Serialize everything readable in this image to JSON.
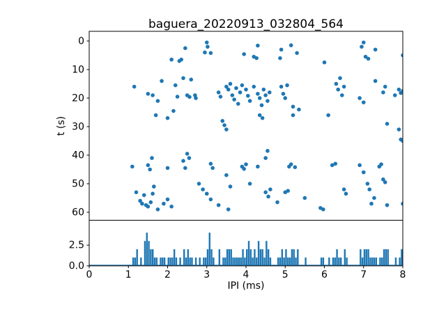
{
  "figure": {
    "title": "baguera_20220913_032804_564",
    "xlabel": "IPI (ms)",
    "ylabel_top": "t (s)",
    "accent_color": "#1f77b4",
    "background": "#ffffff"
  },
  "chart_data": [
    {
      "type": "scatter",
      "title": "baguera_20220913_032804_564",
      "xlabel": "",
      "ylabel": "t (s)",
      "xlim": [
        0,
        8
      ],
      "ylim": [
        62.8,
        -3.4
      ],
      "y_inverted": true,
      "yticks": [
        0,
        10,
        20,
        30,
        40,
        50,
        60
      ],
      "ytick_labels": [
        "0",
        "10",
        "20",
        "30",
        "40",
        "50",
        "60"
      ],
      "marker_color": "#1f77b4",
      "points": [
        [
          2.45,
          2.5
        ],
        [
          2.1,
          6.5
        ],
        [
          2.3,
          7
        ],
        [
          2.35,
          6.5
        ],
        [
          3.0,
          0.5
        ],
        [
          3.02,
          2
        ],
        [
          3.1,
          4.2
        ],
        [
          2.95,
          4
        ],
        [
          4.2,
          5.5
        ],
        [
          4.27,
          6
        ],
        [
          3.95,
          4.6
        ],
        [
          4.3,
          1.6
        ],
        [
          4.9,
          3
        ],
        [
          4.87,
          6
        ],
        [
          5.3,
          4.2
        ],
        [
          5.15,
          1.5
        ],
        [
          6.95,
          2
        ],
        [
          7.0,
          0.5
        ],
        [
          7.05,
          5.5
        ],
        [
          7.12,
          6.2
        ],
        [
          7.3,
          3
        ],
        [
          8.0,
          5
        ],
        [
          6.0,
          7.5
        ],
        [
          1.85,
          14
        ],
        [
          2.4,
          13
        ],
        [
          2.6,
          13.5
        ],
        [
          6.4,
          13
        ],
        [
          7.3,
          14
        ],
        [
          3.6,
          15
        ],
        [
          3.9,
          15.5
        ],
        [
          6.3,
          15
        ],
        [
          2.2,
          15.5
        ],
        [
          1.15,
          16
        ],
        [
          1.5,
          18.5
        ],
        [
          1.62,
          19
        ],
        [
          1.75,
          21
        ],
        [
          2.25,
          19.5
        ],
        [
          2.5,
          19
        ],
        [
          2.56,
          19.6
        ],
        [
          2.7,
          19
        ],
        [
          2.72,
          20
        ],
        [
          3.3,
          18
        ],
        [
          3.35,
          19.5
        ],
        [
          3.5,
          16
        ],
        [
          3.55,
          17
        ],
        [
          3.65,
          19
        ],
        [
          3.7,
          20.5
        ],
        [
          3.75,
          16.5
        ],
        [
          3.8,
          22
        ],
        [
          3.85,
          18
        ],
        [
          4.0,
          17
        ],
        [
          4.05,
          19.2
        ],
        [
          4.1,
          21
        ],
        [
          4.2,
          16
        ],
        [
          4.3,
          18.5
        ],
        [
          4.35,
          20
        ],
        [
          4.4,
          22.5
        ],
        [
          4.45,
          17
        ],
        [
          4.5,
          19
        ],
        [
          4.55,
          21
        ],
        [
          4.6,
          18
        ],
        [
          4.9,
          16
        ],
        [
          4.95,
          18.5
        ],
        [
          5.0,
          20
        ],
        [
          5.2,
          23
        ],
        [
          5.35,
          24
        ],
        [
          6.35,
          17
        ],
        [
          6.5,
          16
        ],
        [
          6.9,
          20
        ],
        [
          7.5,
          18
        ],
        [
          7.55,
          16
        ],
        [
          7.8,
          19
        ],
        [
          7.9,
          17
        ],
        [
          7.95,
          18.2
        ],
        [
          8.0,
          17.5
        ],
        [
          6.45,
          19
        ],
        [
          7.0,
          21.5
        ],
        [
          5.05,
          15.5
        ],
        [
          1.7,
          26
        ],
        [
          2.15,
          24.5
        ],
        [
          3.4,
          28
        ],
        [
          3.45,
          29.5
        ],
        [
          4.35,
          26
        ],
        [
          4.42,
          27
        ],
        [
          5.2,
          26
        ],
        [
          6.1,
          26
        ],
        [
          7.6,
          29
        ],
        [
          7.9,
          31
        ],
        [
          7.95,
          34.5
        ],
        [
          8.0,
          35
        ],
        [
          3.5,
          31
        ],
        [
          2.0,
          27
        ],
        [
          1.1,
          44
        ],
        [
          1.5,
          43.5
        ],
        [
          1.55,
          45
        ],
        [
          1.6,
          41
        ],
        [
          2.0,
          44.5
        ],
        [
          2.4,
          42
        ],
        [
          2.45,
          44.5
        ],
        [
          2.5,
          39.5
        ],
        [
          3.1,
          43
        ],
        [
          3.15,
          44.5
        ],
        [
          3.5,
          47
        ],
        [
          3.9,
          44
        ],
        [
          3.95,
          44.8
        ],
        [
          4.0,
          43.2
        ],
        [
          4.3,
          44
        ],
        [
          4.5,
          41
        ],
        [
          5.1,
          44
        ],
        [
          5.15,
          43.2
        ],
        [
          5.25,
          44.2
        ],
        [
          6.2,
          43.5
        ],
        [
          6.28,
          43
        ],
        [
          6.9,
          43.5
        ],
        [
          7.0,
          46
        ],
        [
          7.4,
          44
        ],
        [
          7.45,
          43.2
        ],
        [
          4.55,
          38.5
        ],
        [
          2.55,
          41
        ],
        [
          1.2,
          53
        ],
        [
          1.3,
          56
        ],
        [
          1.35,
          57
        ],
        [
          1.4,
          54
        ],
        [
          1.45,
          57.5
        ],
        [
          1.5,
          58
        ],
        [
          1.57,
          56.5
        ],
        [
          1.62,
          53.5
        ],
        [
          1.65,
          51
        ],
        [
          1.9,
          57
        ],
        [
          2.0,
          55.5
        ],
        [
          2.8,
          50
        ],
        [
          2.9,
          52
        ],
        [
          3.0,
          53.5
        ],
        [
          3.1,
          55.5
        ],
        [
          3.3,
          57.5
        ],
        [
          3.55,
          59
        ],
        [
          3.6,
          51
        ],
        [
          4.1,
          50
        ],
        [
          4.5,
          53
        ],
        [
          4.57,
          54.5
        ],
        [
          4.62,
          52
        ],
        [
          4.8,
          56.5
        ],
        [
          5.0,
          53
        ],
        [
          5.07,
          52.5
        ],
        [
          5.5,
          55
        ],
        [
          5.9,
          58.5
        ],
        [
          5.97,
          59
        ],
        [
          6.5,
          52
        ],
        [
          6.55,
          53.5
        ],
        [
          7.1,
          50
        ],
        [
          7.15,
          52
        ],
        [
          7.2,
          57
        ],
        [
          7.27,
          55
        ],
        [
          7.5,
          48.5
        ],
        [
          7.55,
          49.5
        ],
        [
          7.6,
          57.5
        ],
        [
          8.0,
          57
        ],
        [
          2.1,
          58
        ],
        [
          1.75,
          59
        ]
      ]
    },
    {
      "type": "bar",
      "title": "",
      "xlabel": "IPI (ms)",
      "ylabel": "",
      "xlim": [
        0,
        8
      ],
      "ylim": [
        0,
        5.5
      ],
      "xticks": [
        0,
        1,
        2,
        3,
        4,
        5,
        6,
        7,
        8
      ],
      "xtick_labels": [
        "0",
        "1",
        "2",
        "3",
        "4",
        "5",
        "6",
        "7",
        "8"
      ],
      "yticks": [
        0.0,
        2.5
      ],
      "ytick_labels": [
        "0.0",
        "2.5"
      ],
      "bar_color": "#1f77b4",
      "bin_width": 0.05,
      "bars": [
        [
          1.1,
          1
        ],
        [
          1.15,
          1
        ],
        [
          1.2,
          2
        ],
        [
          1.3,
          1
        ],
        [
          1.4,
          3
        ],
        [
          1.45,
          4
        ],
        [
          1.5,
          3
        ],
        [
          1.55,
          2
        ],
        [
          1.6,
          2
        ],
        [
          1.65,
          1
        ],
        [
          1.7,
          1
        ],
        [
          1.8,
          1
        ],
        [
          1.85,
          1
        ],
        [
          1.9,
          1
        ],
        [
          2.0,
          1
        ],
        [
          2.05,
          1
        ],
        [
          2.1,
          1
        ],
        [
          2.15,
          2
        ],
        [
          2.2,
          1
        ],
        [
          2.3,
          1
        ],
        [
          2.4,
          2
        ],
        [
          2.45,
          1
        ],
        [
          2.5,
          2
        ],
        [
          2.55,
          1
        ],
        [
          2.6,
          1
        ],
        [
          2.7,
          1
        ],
        [
          2.8,
          1
        ],
        [
          2.9,
          1
        ],
        [
          2.95,
          1
        ],
        [
          3.0,
          2
        ],
        [
          3.05,
          4
        ],
        [
          3.1,
          2
        ],
        [
          3.15,
          1
        ],
        [
          3.3,
          2
        ],
        [
          3.4,
          1
        ],
        [
          3.45,
          1
        ],
        [
          3.5,
          2
        ],
        [
          3.55,
          2
        ],
        [
          3.6,
          2
        ],
        [
          3.65,
          1
        ],
        [
          3.7,
          1
        ],
        [
          3.75,
          1
        ],
        [
          3.8,
          1
        ],
        [
          3.85,
          1
        ],
        [
          3.9,
          2
        ],
        [
          3.95,
          1
        ],
        [
          4.0,
          2
        ],
        [
          4.05,
          3
        ],
        [
          4.1,
          2
        ],
        [
          4.15,
          1
        ],
        [
          4.2,
          2
        ],
        [
          4.25,
          1
        ],
        [
          4.3,
          3
        ],
        [
          4.35,
          2
        ],
        [
          4.4,
          2
        ],
        [
          4.45,
          1
        ],
        [
          4.5,
          3
        ],
        [
          4.55,
          2
        ],
        [
          4.6,
          1
        ],
        [
          4.8,
          1
        ],
        [
          4.85,
          1
        ],
        [
          4.9,
          2
        ],
        [
          4.95,
          1
        ],
        [
          5.0,
          2
        ],
        [
          5.05,
          1
        ],
        [
          5.1,
          1
        ],
        [
          5.15,
          2
        ],
        [
          5.2,
          2
        ],
        [
          5.25,
          1
        ],
        [
          5.3,
          2
        ],
        [
          5.5,
          1
        ],
        [
          5.9,
          1
        ],
        [
          5.95,
          1
        ],
        [
          6.1,
          1
        ],
        [
          6.2,
          1
        ],
        [
          6.25,
          1
        ],
        [
          6.3,
          2
        ],
        [
          6.35,
          1
        ],
        [
          6.4,
          1
        ],
        [
          6.5,
          2
        ],
        [
          6.55,
          1
        ],
        [
          6.9,
          2
        ],
        [
          6.95,
          1
        ],
        [
          7.0,
          2
        ],
        [
          7.05,
          2
        ],
        [
          7.1,
          2
        ],
        [
          7.15,
          1
        ],
        [
          7.2,
          1
        ],
        [
          7.25,
          1
        ],
        [
          7.3,
          1
        ],
        [
          7.4,
          1
        ],
        [
          7.45,
          1
        ],
        [
          7.5,
          2
        ],
        [
          7.55,
          2
        ],
        [
          7.6,
          2
        ],
        [
          7.8,
          1
        ],
        [
          7.9,
          1
        ],
        [
          7.95,
          2
        ]
      ]
    }
  ]
}
